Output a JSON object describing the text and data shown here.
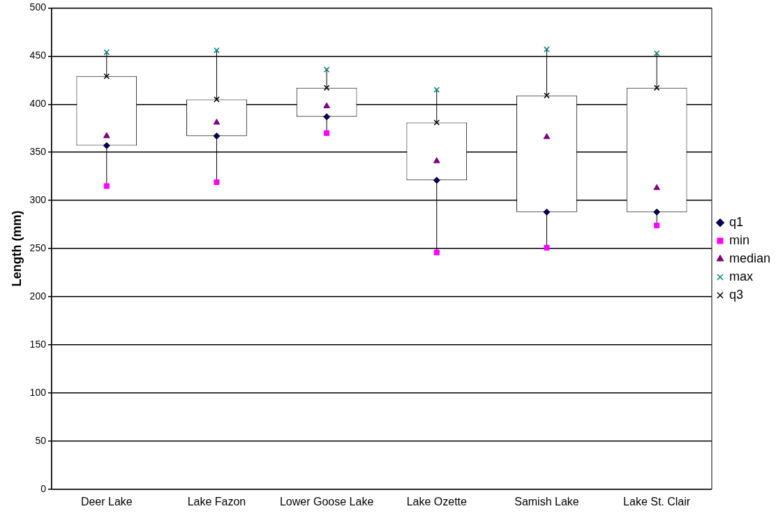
{
  "chart_data": {
    "type": "scatter",
    "ylabel": "Length (mm)",
    "categories": [
      "Deer Lake",
      "Lake Fazon",
      "Lower Goose Lake",
      "Lake Ozette",
      "Samish Lake",
      "Lake St. Clair"
    ],
    "ylim": [
      0,
      500
    ],
    "yticks": [
      0,
      50,
      100,
      150,
      200,
      250,
      300,
      350,
      400,
      450,
      500
    ],
    "grid": "y",
    "legend": "right",
    "series": [
      {
        "type": "bar",
        "color": "#ffffff",
        "base": [
          357,
          367,
          387,
          321,
          288,
          288
        ],
        "values": [
          72,
          38,
          30,
          60,
          121,
          129
        ]
      },
      {
        "name": "q1",
        "color": "#000066",
        "marker": "diamond",
        "values": [
          357,
          367,
          387,
          321,
          288,
          288
        ]
      },
      {
        "name": "min",
        "color": "#ff00ff",
        "marker": "square",
        "values": [
          315,
          319,
          370,
          246,
          251,
          274
        ]
      },
      {
        "name": "median",
        "color": "#800080",
        "marker": "triangle",
        "values": [
          367,
          381,
          398,
          341,
          366,
          313
        ]
      },
      {
        "name": "max",
        "color": "#008080",
        "marker": "cross",
        "values": [
          454,
          456,
          436,
          415,
          457,
          453
        ]
      },
      {
        "name": "q3",
        "color": "#000000",
        "marker": "cross",
        "values": [
          429,
          405,
          417,
          381,
          409,
          417
        ]
      }
    ]
  }
}
